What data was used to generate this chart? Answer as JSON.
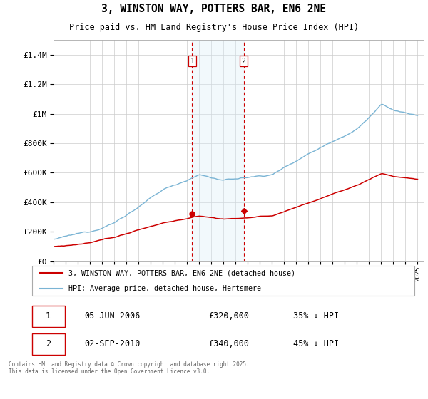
{
  "title": "3, WINSTON WAY, POTTERS BAR, EN6 2NE",
  "subtitle": "Price paid vs. HM Land Registry's House Price Index (HPI)",
  "legend_line1": "3, WINSTON WAY, POTTERS BAR, EN6 2NE (detached house)",
  "legend_line2": "HPI: Average price, detached house, Hertsmere",
  "annotation1_date": "05-JUN-2006",
  "annotation1_price": "£320,000",
  "annotation1_hpi": "35% ↓ HPI",
  "annotation2_date": "02-SEP-2010",
  "annotation2_price": "£340,000",
  "annotation2_hpi": "45% ↓ HPI",
  "footnote": "Contains HM Land Registry data © Crown copyright and database right 2025.\nThis data is licensed under the Open Government Licence v3.0.",
  "hpi_color": "#7ab4d4",
  "price_color": "#cc0000",
  "vline_color": "#cc0000",
  "shade_color": "#daeef8",
  "ylim": [
    0,
    1500000
  ],
  "yticks": [
    0,
    200000,
    400000,
    600000,
    800000,
    1000000,
    1200000,
    1400000
  ],
  "xlim_start": 1995.0,
  "xlim_end": 2025.5,
  "sale1_x": 2006.43,
  "sale1_y": 320000,
  "sale2_x": 2010.67,
  "sale2_y": 340000,
  "vline1_x": 2006.43,
  "vline2_x": 2010.67,
  "shade_x1": 2006.43,
  "shade_x2": 2010.67
}
